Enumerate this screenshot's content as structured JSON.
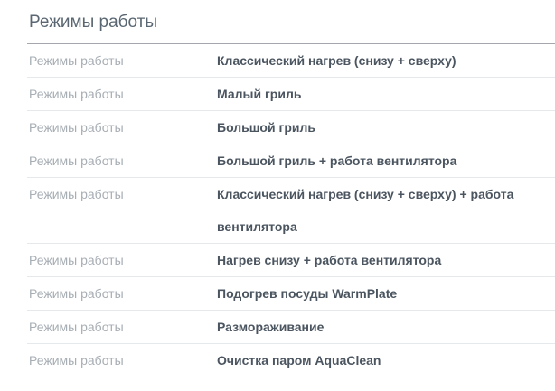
{
  "section": {
    "title": "Режимы работы"
  },
  "rows": [
    {
      "label": "Режимы работы",
      "value": "Классический нагрев (снизу + сверху)"
    },
    {
      "label": "Режимы работы",
      "value": "Малый гриль"
    },
    {
      "label": "Режимы работы",
      "value": "Большой гриль"
    },
    {
      "label": "Режимы работы",
      "value": "Большой гриль + работа вентилятора"
    },
    {
      "label": "Режимы работы",
      "value": "Классический нагрев (снизу + сверху) + работа вентилятора"
    },
    {
      "label": "Режимы работы",
      "value": "Нагрев снизу + работа вентилятора"
    },
    {
      "label": "Режимы работы",
      "value": "Подогрев посуды WarmPlate"
    },
    {
      "label": "Режимы работы",
      "value": "Размораживание"
    },
    {
      "label": "Режимы работы",
      "value": "Очистка паром AquaClean"
    }
  ],
  "colors": {
    "title_text": "#5a6772",
    "label_text": "#a7aeb4",
    "value_text": "#4b5560",
    "header_divider": "#a4a8ac",
    "row_divider": "#e6e9eb",
    "background": "#ffffff"
  }
}
